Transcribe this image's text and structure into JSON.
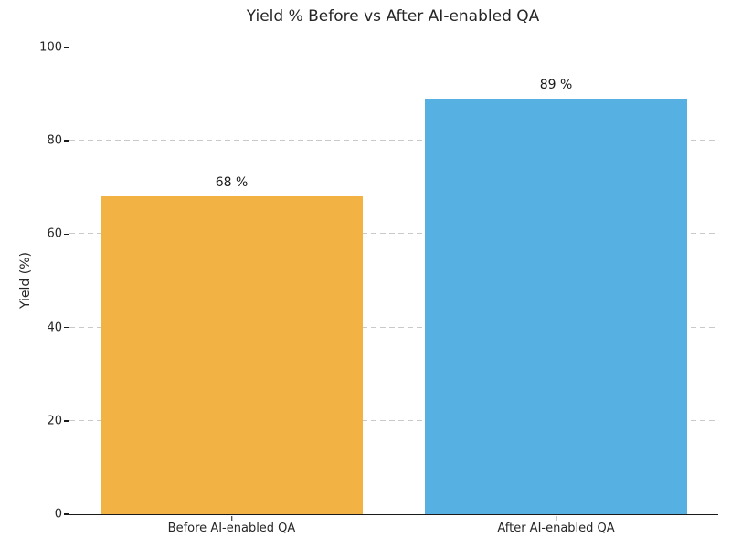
{
  "chart_data": {
    "type": "bar",
    "title": "Yield % Before vs After AI-enabled QA",
    "categories": [
      "Before AI-enabled QA",
      "After AI-enabled QA"
    ],
    "values": [
      68,
      89
    ],
    "value_labels": [
      "68 %",
      "89 %"
    ],
    "bar_colors": [
      "#F2B344",
      "#56B1E2"
    ],
    "xlabel": "",
    "ylabel": "Yield (%)",
    "ylim": [
      0,
      102.3
    ],
    "yticks": [
      0,
      20,
      40,
      60,
      80,
      100
    ],
    "grid": "horizontal-dashed",
    "legend": "none"
  },
  "colors": {
    "background": "#ffffff",
    "title_text": "#262626",
    "tick_text": "#262626",
    "spine": "#1a1a1a",
    "gridline": "#c9c9c9",
    "bar_before": "#F2B344",
    "bar_after": "#56B1E2"
  }
}
